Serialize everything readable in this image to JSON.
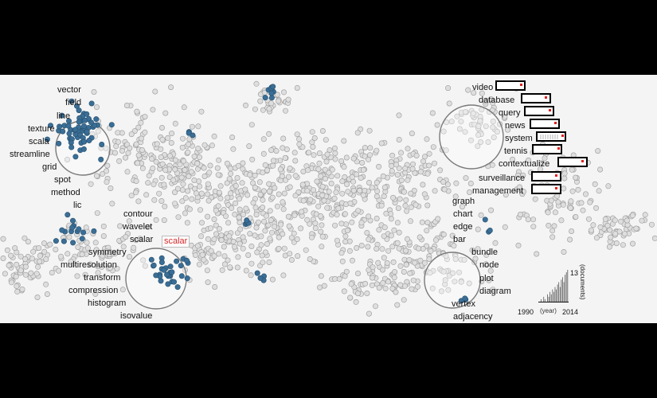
{
  "colors": {
    "background": "#000000",
    "canvas": "#f4f4f4",
    "dot_fill": "#dedede",
    "dot_stroke": "#9a9a9a",
    "selected_dot": "#3b6e96",
    "lens_stroke": "#7a7a7a",
    "highlight_text": "#d62728"
  },
  "lenses": [
    {
      "id": "lens-top-left",
      "keywords": [
        "vector",
        "field",
        "line",
        "texture",
        "scala",
        "streamline",
        "grid",
        "spot",
        "method",
        "lic"
      ]
    },
    {
      "id": "lens-bottom-left",
      "keywords": [
        "contour",
        "wavelet",
        "scalar",
        "symmetry",
        "multiresolution",
        "transform",
        "compression",
        "histogram",
        "isovalue"
      ],
      "highlighted": "scalar"
    },
    {
      "id": "lens-top-right",
      "keywords": [
        "video",
        "database",
        "query",
        "news",
        "system",
        "tennis",
        "contextualize",
        "surveillance",
        "management"
      ]
    },
    {
      "id": "lens-bottom-right",
      "keywords": [
        "graph",
        "chart",
        "edge",
        "bar",
        "bundle",
        "node",
        "plot",
        "diagram",
        "vertex",
        "adjacency"
      ]
    }
  ],
  "timeline": {
    "start_year": "1990",
    "end_year": "2014",
    "unit": "(year)",
    "max_count": "13",
    "count_unit": "(documents)",
    "counts": [
      0,
      0,
      1,
      0,
      2,
      1,
      0,
      3,
      2,
      4,
      3,
      5,
      4,
      6,
      5,
      7,
      8,
      6,
      9,
      10,
      8,
      11,
      12,
      13
    ]
  }
}
